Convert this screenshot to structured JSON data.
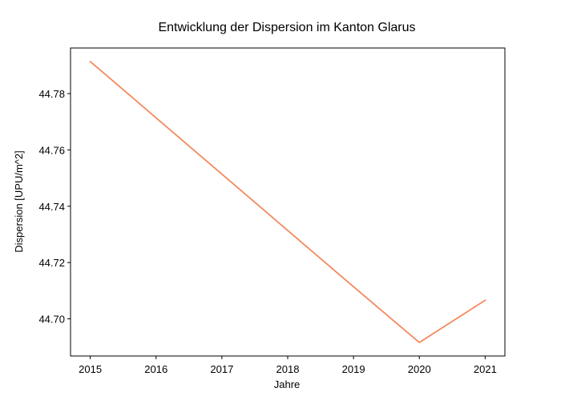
{
  "chart_data": {
    "type": "line",
    "title": "Entwicklung der Dispersion im Kanton Glarus",
    "xlabel": "Jahre",
    "ylabel": "Dispersion [UPU/m^2]",
    "x": [
      2015,
      2016,
      2017,
      2018,
      2019,
      2020,
      2021
    ],
    "series": [
      {
        "values": [
          44.7914,
          44.7714,
          44.7514,
          44.7314,
          44.7114,
          44.6916,
          44.7066
        ],
        "color": "#f4895f"
      }
    ],
    "xlim": [
      2014.7,
      2021.3
    ],
    "ylim": [
      44.6868,
      44.7962
    ],
    "xticks": [
      2015,
      2016,
      2017,
      2018,
      2019,
      2020,
      2021
    ],
    "xtick_labels": [
      "2015",
      "2016",
      "2017",
      "2018",
      "2019",
      "2020",
      "2021"
    ],
    "yticks": [
      44.7,
      44.72,
      44.74,
      44.76,
      44.78
    ],
    "ytick_labels": [
      "44.70",
      "44.72",
      "44.74",
      "44.76",
      "44.78"
    ],
    "grid": false,
    "legend": "none"
  }
}
